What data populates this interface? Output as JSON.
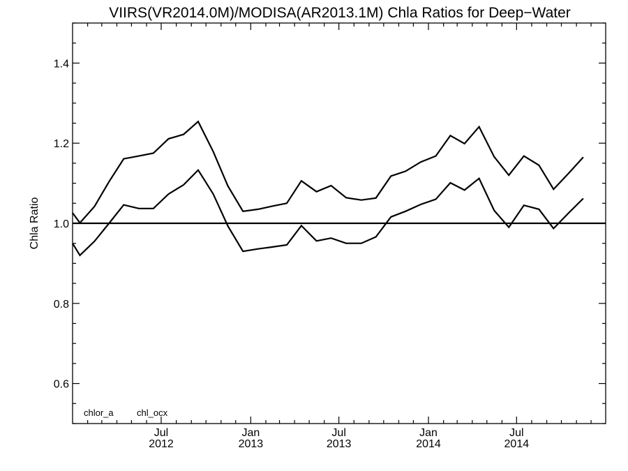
{
  "chart_data": {
    "type": "line",
    "title": "VIIRS(VR2014.0M)/MODISA(AR2013.1M)  Chla Ratios for Deep−Water",
    "xlabel": "",
    "ylabel": "Chla Ratio",
    "ylim": [
      0.5,
      1.5
    ],
    "xlim": [
      "2012-01-01",
      "2014-12-31"
    ],
    "y_ticks": [
      0.6,
      0.8,
      1.0,
      1.2,
      1.4
    ],
    "y_tick_labels": [
      "0.6",
      "0.8",
      "1.0",
      "1.2",
      "1.4"
    ],
    "x_ticks": [
      {
        "date": "2012-07-01",
        "month": "Jul",
        "year": "2012"
      },
      {
        "date": "2013-01-01",
        "month": "Jan",
        "year": "2013"
      },
      {
        "date": "2013-07-01",
        "month": "Jul",
        "year": "2013"
      },
      {
        "date": "2014-01-01",
        "month": "Jan",
        "year": "2014"
      },
      {
        "date": "2014-07-01",
        "month": "Jul",
        "year": "2014"
      }
    ],
    "reference_line": 1.0,
    "legend": [
      "chlor_a",
      "chl_ocx"
    ],
    "legend_placement": "bottom-left",
    "grid": false,
    "series": [
      {
        "name": "chlor_a",
        "color": "#000000",
        "points": [
          [
            "2012-01-01",
            1.026
          ],
          [
            "2012-01-16",
            1.001
          ],
          [
            "2012-02-15",
            1.042
          ],
          [
            "2012-03-16",
            1.104
          ],
          [
            "2012-04-15",
            1.161
          ],
          [
            "2012-05-16",
            1.168
          ],
          [
            "2012-06-15",
            1.175
          ],
          [
            "2012-07-16",
            1.211
          ],
          [
            "2012-08-16",
            1.222
          ],
          [
            "2012-09-15",
            1.254
          ],
          [
            "2012-10-16",
            1.179
          ],
          [
            "2012-11-15",
            1.093
          ],
          [
            "2012-12-16",
            1.03
          ],
          [
            "2013-01-16",
            1.035
          ],
          [
            "2013-02-15",
            1.043
          ],
          [
            "2013-03-16",
            1.05
          ],
          [
            "2013-04-15",
            1.106
          ],
          [
            "2013-05-16",
            1.079
          ],
          [
            "2013-06-15",
            1.094
          ],
          [
            "2013-07-16",
            1.064
          ],
          [
            "2013-08-16",
            1.058
          ],
          [
            "2013-09-15",
            1.063
          ],
          [
            "2013-10-16",
            1.118
          ],
          [
            "2013-11-15",
            1.13
          ],
          [
            "2013-12-16",
            1.153
          ],
          [
            "2014-01-16",
            1.168
          ],
          [
            "2014-02-15",
            1.219
          ],
          [
            "2014-03-16",
            1.199
          ],
          [
            "2014-04-15",
            1.241
          ],
          [
            "2014-05-16",
            1.166
          ],
          [
            "2014-06-15",
            1.12
          ],
          [
            "2014-07-16",
            1.168
          ],
          [
            "2014-08-16",
            1.145
          ],
          [
            "2014-09-15",
            1.085
          ],
          [
            "2014-10-16",
            1.125
          ],
          [
            "2014-11-15",
            1.165
          ]
        ]
      },
      {
        "name": "chl_ocx",
        "color": "#000000",
        "points": [
          [
            "2012-01-01",
            0.95
          ],
          [
            "2012-01-16",
            0.92
          ],
          [
            "2012-02-15",
            0.955
          ],
          [
            "2012-03-16",
            1.0
          ],
          [
            "2012-04-15",
            1.046
          ],
          [
            "2012-05-16",
            1.037
          ],
          [
            "2012-06-15",
            1.037
          ],
          [
            "2012-07-16",
            1.073
          ],
          [
            "2012-08-16",
            1.096
          ],
          [
            "2012-09-15",
            1.133
          ],
          [
            "2012-10-16",
            1.073
          ],
          [
            "2012-11-15",
            0.993
          ],
          [
            "2012-12-16",
            0.93
          ],
          [
            "2013-01-16",
            0.936
          ],
          [
            "2013-02-15",
            0.941
          ],
          [
            "2013-03-16",
            0.946
          ],
          [
            "2013-04-15",
            0.994
          ],
          [
            "2013-05-16",
            0.956
          ],
          [
            "2013-06-15",
            0.963
          ],
          [
            "2013-07-16",
            0.95
          ],
          [
            "2013-08-16",
            0.95
          ],
          [
            "2013-09-15",
            0.966
          ],
          [
            "2013-10-16",
            1.016
          ],
          [
            "2013-11-15",
            1.03
          ],
          [
            "2013-12-16",
            1.047
          ],
          [
            "2014-01-16",
            1.06
          ],
          [
            "2014-02-15",
            1.101
          ],
          [
            "2014-03-16",
            1.083
          ],
          [
            "2014-04-15",
            1.112
          ],
          [
            "2014-05-16",
            1.032
          ],
          [
            "2014-06-15",
            0.99
          ],
          [
            "2014-07-16",
            1.045
          ],
          [
            "2014-08-16",
            1.035
          ],
          [
            "2014-09-15",
            0.987
          ],
          [
            "2014-10-16",
            1.026
          ],
          [
            "2014-11-15",
            1.062
          ]
        ]
      }
    ]
  }
}
